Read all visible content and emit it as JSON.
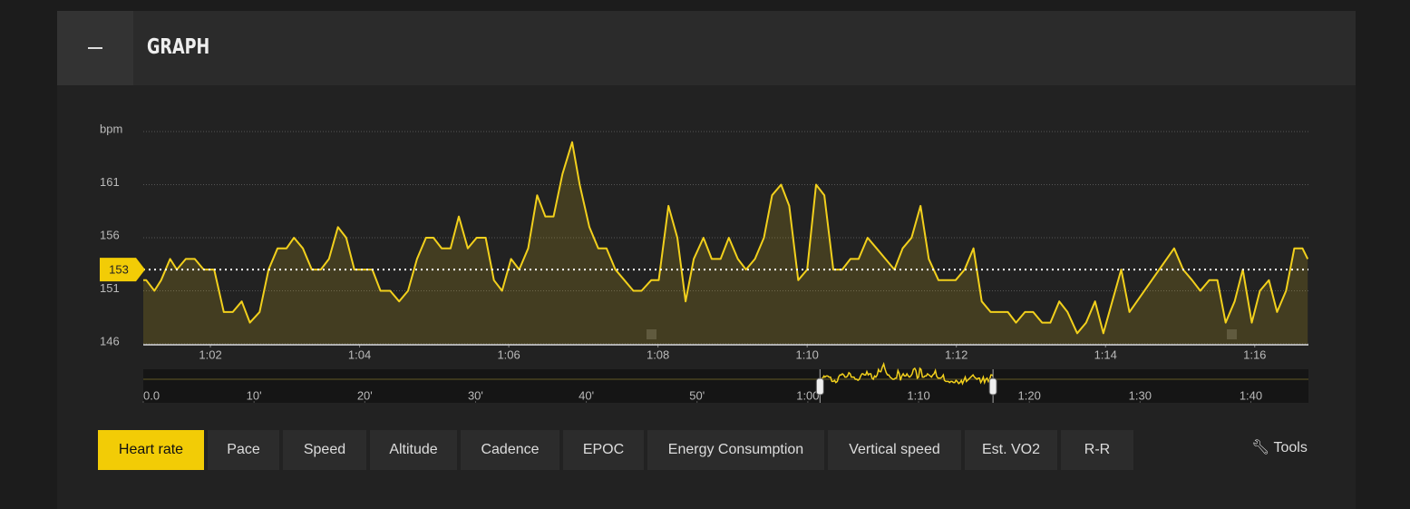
{
  "header": {
    "title": "GRAPH"
  },
  "chart_data": {
    "type": "line",
    "color": "#f2d01c",
    "average": 153,
    "grid": true,
    "x": [
      61.1,
      61.14,
      61.25,
      61.34,
      61.46,
      61.55,
      61.67,
      61.79,
      61.91,
      62.05,
      62.18,
      62.3,
      62.42,
      62.53,
      62.66,
      62.78,
      62.9,
      63.02,
      63.12,
      63.24,
      63.36,
      63.48,
      63.59,
      63.71,
      63.82,
      63.93,
      64.05,
      64.17,
      64.28,
      64.41,
      64.53,
      64.65,
      64.77,
      64.89,
      64.99,
      65.1,
      65.22,
      65.33,
      65.45,
      65.57,
      65.69,
      65.8,
      65.91,
      66.03,
      66.14,
      66.26,
      66.38,
      66.49,
      66.6,
      66.72,
      66.85,
      66.95,
      67.08,
      67.2,
      67.31,
      67.43,
      67.55,
      67.67,
      67.78,
      67.91,
      68.01,
      68.14,
      68.26,
      68.37,
      68.48,
      68.61,
      68.72,
      68.84,
      68.95,
      69.07,
      69.18,
      69.3,
      69.42,
      69.53,
      69.65,
      69.76,
      69.88,
      70.0,
      70.12,
      70.23,
      70.35,
      70.47,
      70.58,
      70.69,
      70.81,
      70.93,
      71.05,
      71.17,
      71.28,
      71.4,
      71.52,
      71.63,
      71.76,
      71.88,
      71.99,
      72.11,
      72.23,
      72.34,
      72.46,
      72.57,
      72.69,
      72.8,
      72.92,
      73.03,
      73.15,
      73.26,
      73.38,
      73.49,
      73.62,
      73.74,
      73.86,
      73.97,
      74.21,
      74.32,
      74.92,
      75.04,
      75.16,
      75.27,
      75.39,
      75.5,
      75.61,
      75.73,
      75.84,
      75.96,
      76.07,
      76.19,
      76.3,
      76.42,
      76.53,
      76.64,
      76.71
    ],
    "values": [
      152,
      152,
      151,
      152,
      154,
      153,
      154,
      154,
      153,
      153,
      149,
      149,
      150,
      148,
      149,
      153,
      155,
      155,
      156,
      155,
      153,
      153,
      154,
      157,
      156,
      153,
      153,
      153,
      151,
      151,
      150,
      151,
      154,
      156,
      156,
      155,
      155,
      158,
      155,
      156,
      156,
      152,
      151,
      154,
      153,
      155,
      160,
      158,
      158,
      162,
      165,
      161,
      157,
      155,
      155,
      153,
      152,
      151,
      151,
      152,
      152,
      159,
      156,
      150,
      154,
      156,
      154,
      154,
      156,
      154,
      153,
      154,
      156,
      160,
      161,
      159,
      152,
      153,
      161,
      160,
      153,
      153,
      154,
      154,
      156,
      155,
      154,
      153,
      155,
      156,
      159,
      154,
      152,
      152,
      152,
      153,
      155,
      150,
      149,
      149,
      149,
      148,
      149,
      149,
      148,
      148,
      150,
      149,
      147,
      148,
      150,
      147,
      153,
      149,
      155,
      153,
      152,
      151,
      152,
      152,
      148,
      150,
      153,
      148,
      151,
      152,
      149,
      151,
      155,
      155,
      154
    ],
    "xlim": [
      61.1,
      76.72
    ],
    "xticks": [
      {
        "value": 62,
        "label": "1:02"
      },
      {
        "value": 64,
        "label": "1:04"
      },
      {
        "value": 66,
        "label": "1:06"
      },
      {
        "value": 68,
        "label": "1:08"
      },
      {
        "value": 70,
        "label": "1:10"
      },
      {
        "value": 72,
        "label": "1:12"
      },
      {
        "value": 74,
        "label": "1:14"
      },
      {
        "value": 76,
        "label": "1:16"
      }
    ],
    "ylim": [
      146,
      166
    ],
    "yticks": [
      146,
      151,
      156,
      161,
      {
        "value": 166,
        "label": "bpm"
      }
    ],
    "overview": {
      "xlim": [
        0,
        105.2
      ],
      "xticks": [
        {
          "value": 0,
          "label": "0.0"
        },
        {
          "value": 10,
          "label": "10'"
        },
        {
          "value": 20,
          "label": "20'"
        },
        {
          "value": 30,
          "label": "30'"
        },
        {
          "value": 40,
          "label": "40'"
        },
        {
          "value": 50,
          "label": "50'"
        },
        {
          "value": 60,
          "label": "1:00"
        },
        {
          "value": 70,
          "label": "1:10"
        },
        {
          "value": 80,
          "label": "1:20"
        },
        {
          "value": 90,
          "label": "1:30"
        },
        {
          "value": 100,
          "label": "1:40"
        }
      ]
    }
  },
  "tabs": [
    "Heart rate",
    "Pace",
    "Speed",
    "Altitude",
    "Cadence",
    "EPOC",
    "Energy Consumption",
    "Vertical speed",
    "Est. VO2",
    "R-R"
  ],
  "tools": "Tools"
}
